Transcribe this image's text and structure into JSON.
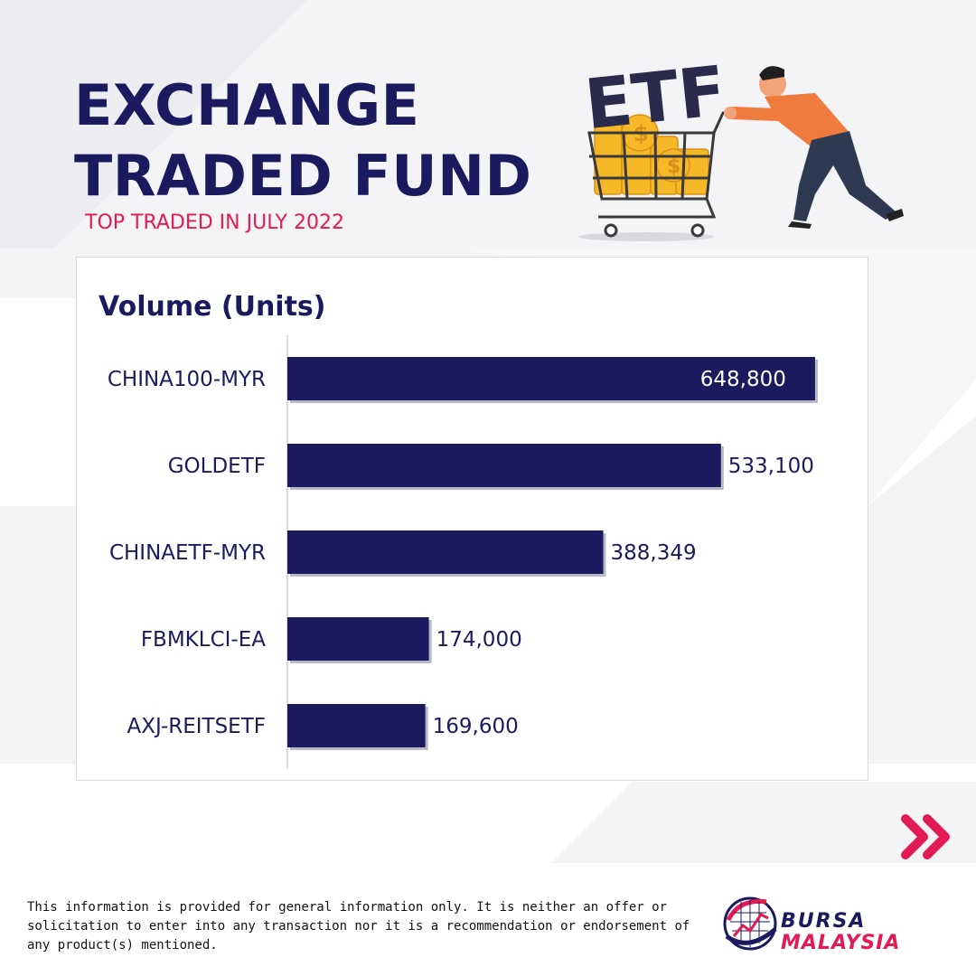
{
  "header": {
    "title_line1": "EXCHANGE",
    "title_line2": "TRADED FUND",
    "subtitle": "TOP TRADED IN JULY 2022"
  },
  "illustration": {
    "badge_text": "ETF",
    "icon": "man-pushing-shopping-cart-icon"
  },
  "chart_data": {
    "type": "bar",
    "orientation": "horizontal",
    "title": "Volume (Units)",
    "categories": [
      "CHINA100-MYR",
      "GOLDETF",
      "CHINAETF-MYR",
      "FBMKLCI-EA",
      "AXJ-REITSETF"
    ],
    "values": [
      648800,
      533100,
      388349,
      174000,
      169600
    ],
    "value_labels": [
      "648,800",
      "533,100",
      "388,349",
      "174,000",
      "169,600"
    ],
    "xlim": [
      0,
      650000
    ],
    "grid": false,
    "bar_color": "#1c1a5e"
  },
  "footer": {
    "disclaimer": "This information is provided for general information only. It is neither an offer or solicitation to enter into any transaction nor it is a recommendation or endorsement of any product(s) mentioned.",
    "next_icon": "double-chevron-right-icon",
    "logo_line1": "BURSA",
    "logo_line2": "MALAYSIA",
    "accent_color": "#e31b54",
    "brand_color": "#1c1a5e"
  }
}
